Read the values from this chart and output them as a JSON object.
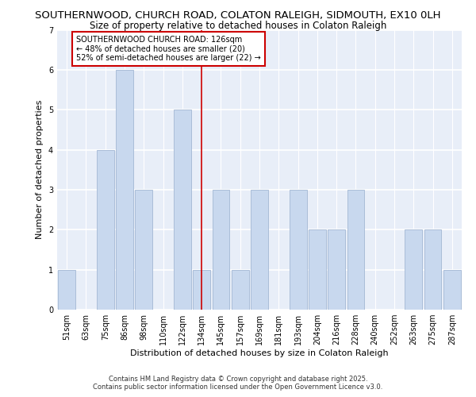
{
  "title_line1": "SOUTHERNWOOD, CHURCH ROAD, COLATON RALEIGH, SIDMOUTH, EX10 0LH",
  "title_line2": "Size of property relative to detached houses in Colaton Raleigh",
  "xlabel": "Distribution of detached houses by size in Colaton Raleigh",
  "ylabel": "Number of detached properties",
  "categories": [
    "51sqm",
    "63sqm",
    "75sqm",
    "86sqm",
    "98sqm",
    "110sqm",
    "122sqm",
    "134sqm",
    "145sqm",
    "157sqm",
    "169sqm",
    "181sqm",
    "193sqm",
    "204sqm",
    "216sqm",
    "228sqm",
    "240sqm",
    "252sqm",
    "263sqm",
    "275sqm",
    "287sqm"
  ],
  "values": [
    1,
    0,
    4,
    6,
    3,
    0,
    5,
    1,
    3,
    1,
    3,
    0,
    3,
    2,
    2,
    3,
    0,
    0,
    2,
    2,
    1
  ],
  "highlight_index": 7,
  "bar_color": "#c8d8ee",
  "bar_edge_color": "#aabdd8",
  "annotation_box_color": "#ffffff",
  "annotation_box_edge": "#cc0000",
  "annotation_text_line1": "SOUTHERNWOOD CHURCH ROAD: 126sqm",
  "annotation_text_line2": "← 48% of detached houses are smaller (20)",
  "annotation_text_line3": "52% of semi-detached houses are larger (22) →",
  "vline_color": "#cc0000",
  "ylim": [
    0,
    7
  ],
  "yticks": [
    0,
    1,
    2,
    3,
    4,
    5,
    6,
    7
  ],
  "footer_line1": "Contains HM Land Registry data © Crown copyright and database right 2025.",
  "footer_line2": "Contains public sector information licensed under the Open Government Licence v3.0.",
  "bg_color": "#ffffff",
  "plot_bg_color": "#e8eef8",
  "grid_color": "#ffffff",
  "title_fontsize": 9.5,
  "subtitle_fontsize": 8.5,
  "axis_label_fontsize": 8,
  "tick_fontsize": 7,
  "annotation_fontsize": 7,
  "footer_fontsize": 6
}
